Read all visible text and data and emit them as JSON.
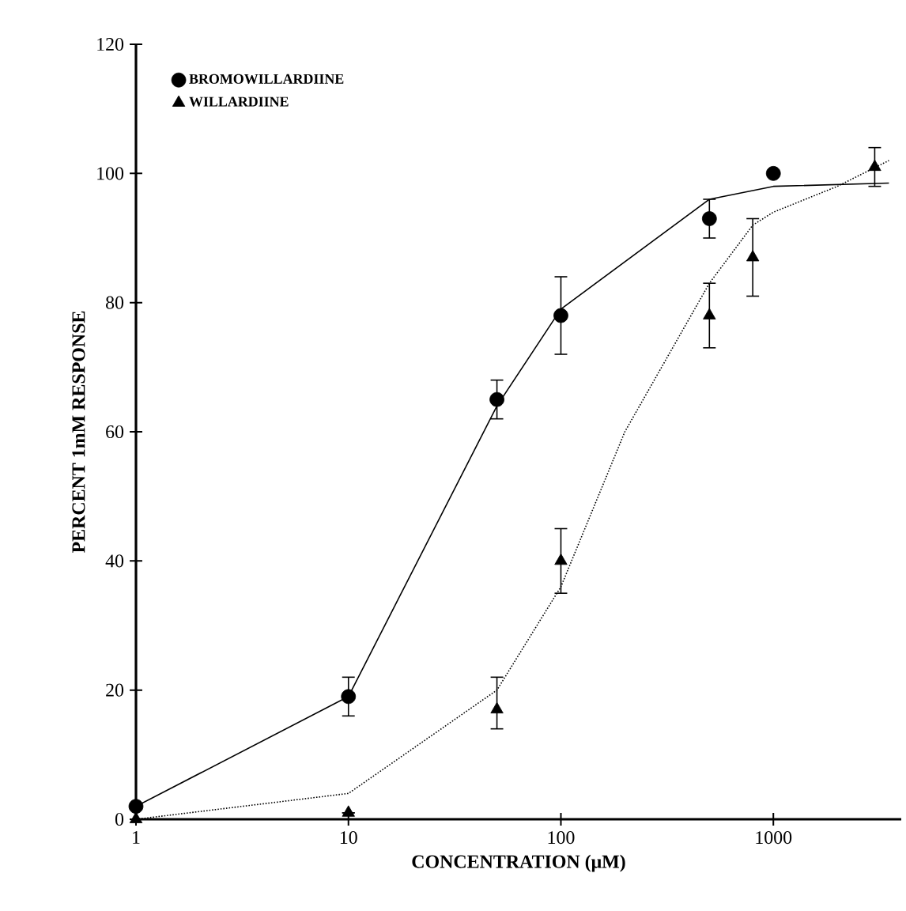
{
  "chart_data": {
    "type": "scatter",
    "xlabel": "CONCENTRATION (μM)",
    "ylabel": "PERCENT 1mM RESPONSE",
    "xlim": [
      1,
      4000
    ],
    "ylim": [
      0,
      120
    ],
    "xticks": [
      1,
      10,
      100,
      1000
    ],
    "yticks": [
      0,
      20,
      40,
      60,
      80,
      100,
      120
    ],
    "log": "x",
    "grid": false,
    "legend": "top left",
    "series": [
      {
        "name": "BROMOWILLARDIINE",
        "color": "#000000",
        "marker": "circle",
        "x": [
          1,
          10,
          50,
          100,
          500,
          1000
        ],
        "values": [
          2,
          19,
          65,
          78,
          93,
          100
        ],
        "errors": [
          null,
          3,
          3,
          6,
          3,
          null
        ]
      },
      {
        "name": "WILLARDIINE",
        "color": "#000000",
        "marker": "triangle",
        "x": [
          1,
          10,
          50,
          100,
          500,
          800,
          3000
        ],
        "values": [
          0,
          1,
          17,
          40,
          78,
          87,
          101
        ],
        "errors": [
          null,
          null,
          [
            14,
            22
          ],
          [
            35,
            45
          ],
          [
            73,
            83
          ],
          [
            81,
            93
          ],
          [
            98,
            104
          ]
        ]
      },
      {
        "type": "line",
        "color": "#000000",
        "line_style": "solid",
        "marker": "none",
        "x": [
          1,
          10,
          50,
          100,
          500,
          1000,
          3500
        ],
        "values": [
          2,
          19,
          64,
          79,
          96,
          98,
          98.5
        ]
      },
      {
        "type": "line",
        "color": "#000000",
        "line_style": "dotted",
        "marker": "none",
        "x": [
          1,
          10,
          50,
          100,
          200,
          500,
          800,
          1000,
          2000,
          3500
        ],
        "values": [
          0,
          4,
          20,
          36,
          60,
          83,
          92,
          94,
          98,
          102
        ]
      }
    ]
  }
}
